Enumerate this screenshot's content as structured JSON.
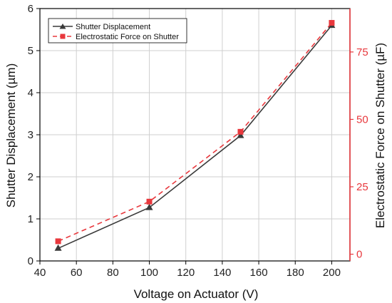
{
  "chart_data": {
    "type": "line",
    "x": [
      50,
      100,
      150,
      200
    ],
    "xlabel": "Voltage on Actuator (V)",
    "xlim": [
      40,
      210
    ],
    "xticks": [
      40,
      60,
      80,
      100,
      120,
      140,
      160,
      180,
      200
    ],
    "ylabel_left": "Shutter Displacement (µm)",
    "ylim_left": [
      0,
      6
    ],
    "yticks_left": [
      0,
      1,
      2,
      3,
      4,
      5,
      6
    ],
    "ylabel_right": "Electrostatic Force on Shutter (µF)",
    "ylim_right": [
      -2.5,
      91.1
    ],
    "yticks_right": [
      0,
      25,
      50,
      75
    ],
    "grid": true,
    "legend_position": "top-left",
    "series": [
      {
        "name": "Shutter Displacement",
        "axis": "left",
        "values": [
          0.3,
          1.27,
          2.98,
          5.6
        ],
        "color": "#3a3a3a",
        "marker": "triangle",
        "line_style": "solid"
      },
      {
        "name": "Electrostatic Force on Shutter",
        "axis": "right",
        "values": [
          4.8,
          19.5,
          45.4,
          85.8
        ],
        "color": "#e8383d",
        "marker": "square",
        "line_style": "dashed"
      }
    ]
  }
}
